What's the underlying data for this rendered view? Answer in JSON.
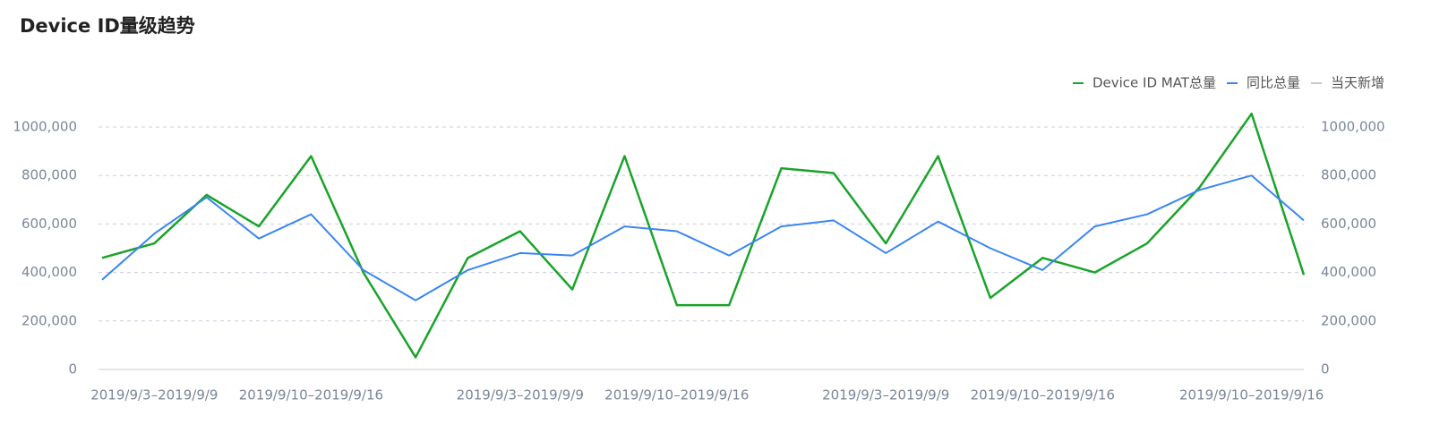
{
  "chart_data": {
    "type": "line",
    "title": "Device ID量级趋势",
    "categories": [
      null,
      "2019/9/3–2019/9/9",
      null,
      null,
      "2019/9/10–2019/9/16",
      null,
      null,
      null,
      "2019/9/3–2019/9/9",
      null,
      null,
      "2019/9/10–2019/9/16",
      null,
      null,
      null,
      "2019/9/3–2019/9/9",
      null,
      null,
      "2019/9/10–2019/9/16",
      null,
      null,
      null,
      "2019/9/10–2019/9/16",
      null
    ],
    "series": [
      {
        "name": "Device ID MAT总量",
        "color": "#1aa32a",
        "values": [
          460000,
          520000,
          720000,
          590000,
          880000,
          400000,
          50000,
          460000,
          570000,
          330000,
          880000,
          265000,
          265000,
          830000,
          810000,
          520000,
          880000,
          295000,
          460000,
          400000,
          520000,
          750000,
          1055000,
          390000
        ]
      },
      {
        "name": "同比总量",
        "color": "#3a86f0",
        "values": [
          370000,
          560000,
          710000,
          540000,
          640000,
          410000,
          285000,
          410000,
          480000,
          470000,
          590000,
          570000,
          470000,
          590000,
          615000,
          480000,
          610000,
          500000,
          410000,
          590000,
          640000,
          740000,
          800000,
          615000
        ]
      },
      {
        "name": "当天新增",
        "color": "#c8c8c8",
        "axis": "y2",
        "values": [
          null,
          null,
          null,
          null,
          null,
          null,
          null,
          null,
          null,
          null,
          null,
          null,
          null,
          null,
          null,
          null,
          null,
          null,
          null,
          null,
          null,
          null,
          null,
          null
        ]
      }
    ],
    "ylim": [
      0,
      1000000
    ],
    "yticks": [
      0,
      {
        "value": 200000,
        "label": "200,000"
      },
      {
        "value": 400000,
        "label": "400,000"
      },
      {
        "value": 600000,
        "label": "600,000"
      },
      {
        "value": 800000,
        "label": "800,000"
      },
      {
        "value": 1000000,
        "label": "1000,000"
      }
    ],
    "y2lim": [
      0,
      1000000
    ],
    "y2ticks": [
      0,
      {
        "value": 200000,
        "label": "200,000"
      },
      {
        "value": 400000,
        "label": "400,000"
      },
      {
        "value": 600000,
        "label": "600,000"
      },
      {
        "value": 800000,
        "label": "800,000"
      },
      {
        "value": 1000000,
        "label": "1000,000"
      }
    ],
    "grid": true,
    "legend": "top-right"
  }
}
